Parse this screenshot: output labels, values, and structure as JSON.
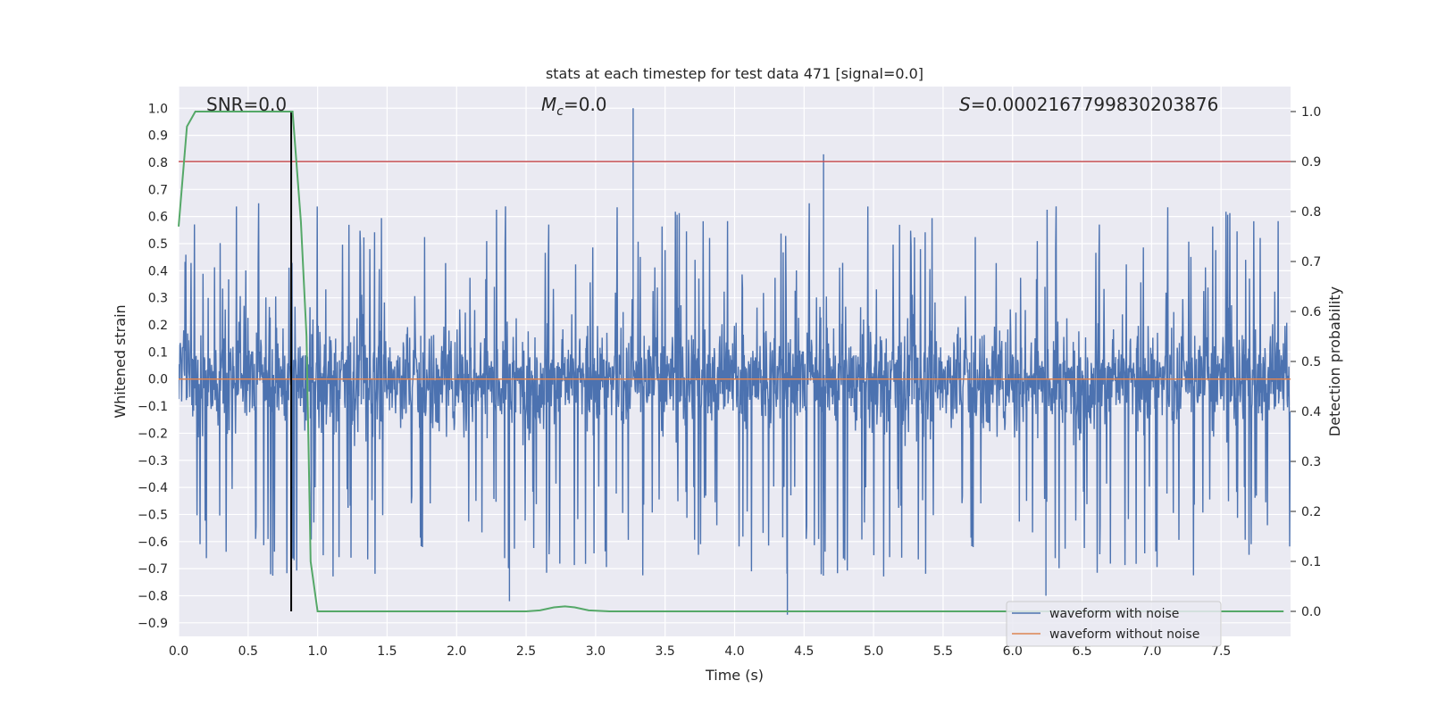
{
  "chart_data": {
    "type": "line",
    "title": "stats at each timestep for test data 471 [signal=0.0]",
    "xlabel": "Time (s)",
    "ylabel_left": "Whitened strain",
    "ylabel_right": "Detection probability",
    "xlim": [
      0.0,
      8.0
    ],
    "ylim_left": [
      -0.95,
      1.08
    ],
    "ylim_right": [
      -0.05,
      1.05
    ],
    "x_ticks": [
      0.0,
      0.5,
      1.0,
      1.5,
      2.0,
      2.5,
      3.0,
      3.5,
      4.0,
      4.5,
      5.0,
      5.5,
      6.0,
      6.5,
      7.0,
      7.5
    ],
    "x_tick_labels": [
      "0.0",
      "0.5",
      "1.0",
      "1.5",
      "2.0",
      "2.5",
      "3.0",
      "3.5",
      "4.0",
      "4.5",
      "5.0",
      "5.5",
      "6.0",
      "6.5",
      "7.0",
      "7.5"
    ],
    "y_left_ticks": [
      1.0,
      0.9,
      0.8,
      0.7,
      0.6,
      0.5,
      0.4,
      0.3,
      0.2,
      0.1,
      0.0,
      -0.1,
      -0.2,
      -0.3,
      -0.4,
      -0.5,
      -0.6,
      -0.7,
      -0.8,
      -0.9
    ],
    "y_left_tick_labels": [
      "1.0",
      "0.9",
      "0.8",
      "0.7",
      "0.6",
      "0.5",
      "0.4",
      "0.3",
      "0.2",
      "0.1",
      "0.0",
      "−0.1",
      "−0.2",
      "−0.3",
      "−0.4",
      "−0.5",
      "−0.6",
      "−0.7",
      "−0.8",
      "−0.9"
    ],
    "y_right_ticks": [
      1.0,
      0.9,
      0.8,
      0.7,
      0.6,
      0.5,
      0.4,
      0.3,
      0.2,
      0.1,
      0.0
    ],
    "y_right_tick_labels": [
      "1.0",
      "0.9",
      "0.8",
      "0.7",
      "0.6",
      "0.5",
      "0.4",
      "0.3",
      "0.2",
      "0.1",
      "0.0"
    ],
    "annotations": {
      "snr": "SNR=0.0",
      "mc_symbol": "M",
      "mc_sub": "c",
      "mc_value": "=0.0",
      "s_symbol": "S",
      "s_value": "=0.0002167799830203876"
    },
    "series": [
      {
        "name": "waveform with noise",
        "color": "#4c72b0",
        "description": "noisy whitened strain, roughly uniform band",
        "band_core": [
          -0.38,
          0.25
        ],
        "spike_max": 1.0,
        "spike_min": -0.87,
        "notable_spikes": [
          {
            "x": 3.27,
            "y": 1.0
          },
          {
            "x": 4.64,
            "y": 0.83
          },
          {
            "x": 4.38,
            "y": -0.87
          },
          {
            "x": 6.24,
            "y": -0.8
          },
          {
            "x": 2.38,
            "y": -0.82
          }
        ]
      },
      {
        "name": "waveform without noise",
        "color": "#dd8452",
        "y": 0.0
      },
      {
        "name": "detection probability",
        "color": "#55a868",
        "axis": "right",
        "x": [
          0.0,
          0.06,
          0.12,
          0.25,
          0.4,
          0.6,
          0.75,
          0.82,
          0.88,
          0.92,
          0.95,
          1.0,
          1.08,
          1.5,
          2.0,
          2.5,
          2.6,
          2.7,
          2.78,
          2.85,
          2.95,
          3.1,
          3.5,
          4.0,
          5.0,
          6.0,
          7.0,
          7.95
        ],
        "y": [
          0.77,
          0.97,
          1.0,
          1.0,
          1.0,
          1.0,
          1.0,
          1.0,
          0.78,
          0.55,
          0.1,
          0.0,
          0.0,
          0.0,
          0.0,
          0.0,
          0.002,
          0.008,
          0.01,
          0.008,
          0.002,
          0.0,
          0.0,
          0.0,
          0.0,
          0.0,
          0.0,
          0.0
        ]
      }
    ],
    "threshold": {
      "axis": "right",
      "value": 0.9,
      "color": "#c44e52"
    },
    "marker_line": {
      "x": 0.81,
      "color": "#000000"
    },
    "legend": {
      "location": "lower-right",
      "entries": [
        {
          "label": "waveform with noise",
          "color": "#4c72b0"
        },
        {
          "label": "waveform without noise",
          "color": "#dd8452"
        }
      ]
    },
    "grid": true,
    "background": "#eaeaf2"
  }
}
